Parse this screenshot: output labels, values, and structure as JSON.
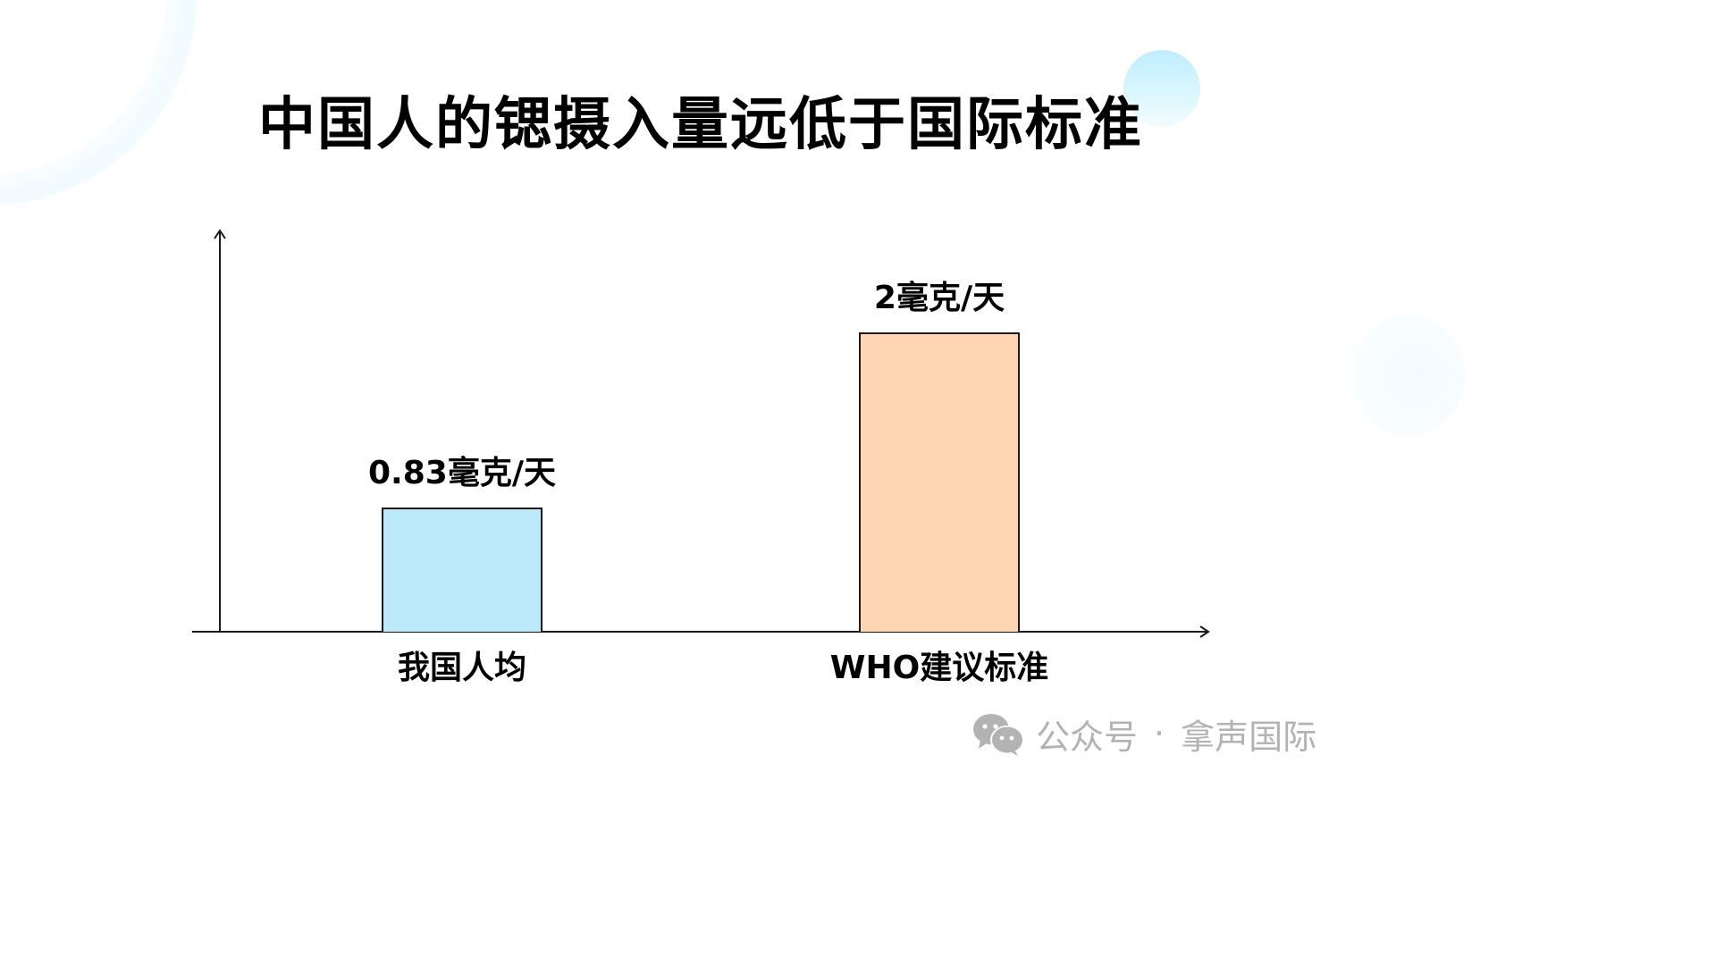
{
  "title": "中国人的锶摄入量远低于国际标准",
  "chart_data": {
    "type": "bar",
    "title": "中国人的锶摄入量远低于国际标准",
    "categories": [
      "我国人均",
      "WHO建议标准"
    ],
    "values": [
      0.83,
      2
    ],
    "unit": "毫克/天",
    "data_labels": [
      "0.83毫克/天",
      "2毫克/天"
    ],
    "colors": [
      "#bdeafb",
      "#ffd6b3"
    ],
    "xlabel": "",
    "ylabel": "",
    "ylim": [
      0,
      2.45
    ],
    "grid": false,
    "legend": "none",
    "axis_arrows": true,
    "y_ticks": false
  },
  "watermark": {
    "icon": "wechat-icon",
    "label": "公众号",
    "separator": "·",
    "account": "拿声国际"
  },
  "colors": {
    "bar_domestic": "#bdeafb",
    "bar_who": "#ffd6b3",
    "axis": "#1a1a1a",
    "watermark": "#b3b3b3",
    "accent_bubble": "#c6f0ff"
  }
}
